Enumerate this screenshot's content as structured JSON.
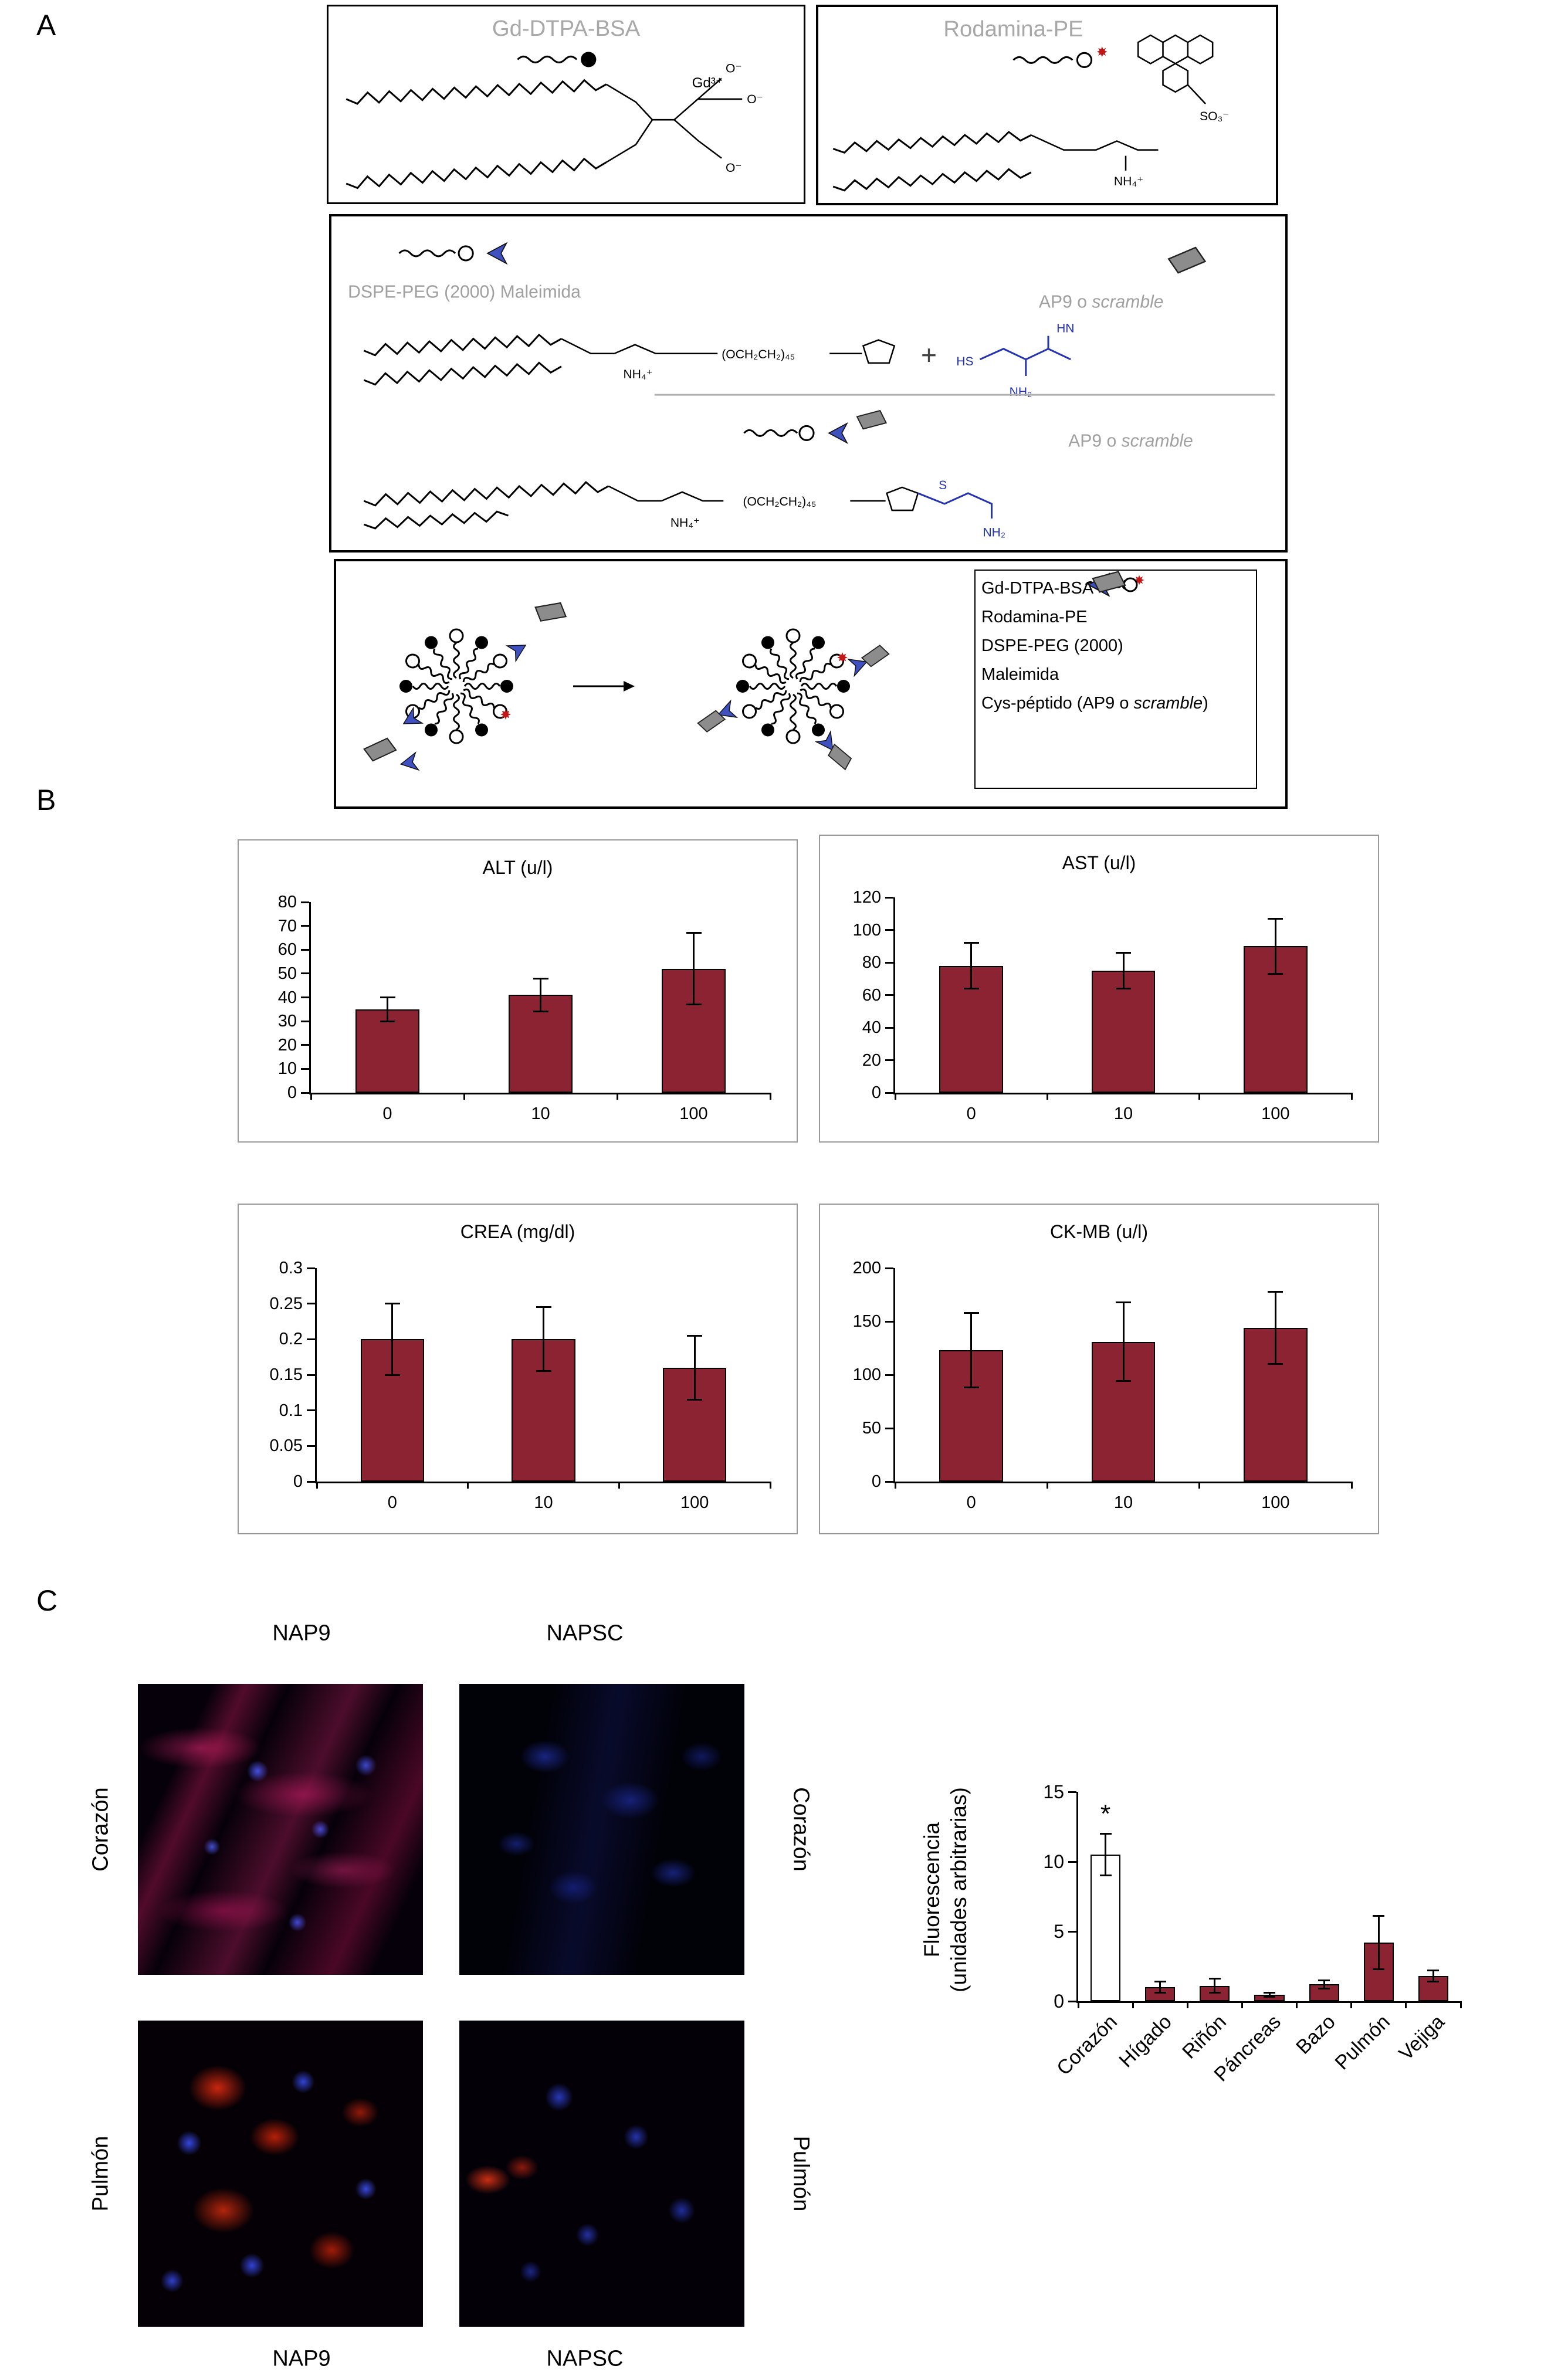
{
  "panel_a": {
    "label": "A",
    "box1_title": "Gd-DTPA-BSA",
    "box2_title": "Rodamina-PE",
    "dspe_label": "DSPE-PEG (2000) Maleimida",
    "ap9_prefix": "AP9 o ",
    "ap9_italic": "scramble",
    "plus": "+",
    "chem": {
      "gd": "Gd³⁺",
      "o_minus": "O⁻",
      "nh4": "NH₄⁺",
      "so3": "SO₃⁻",
      "hs": "HS",
      "hn": "HN",
      "nh2": "NH₂",
      "s": "S",
      "peg": "(OCH₂CH₂)₄₅"
    },
    "legend": {
      "gd": "Gd-DTPA-BSA",
      "rodamina": "Rodamina-PE",
      "dspe": "DSPE-PEG (2000)",
      "maleimida": "Maleimida",
      "cys_prefix": "Cys-péptido (AP9 o ",
      "cys_italic": "scramble",
      "cys_suffix": ")"
    }
  },
  "panel_b": {
    "label": "B"
  },
  "panel_c": {
    "label": "C",
    "nap9": "NAP9",
    "napsc": "NAPSC",
    "corazon": "Corazón",
    "pulmon": "Pulmón"
  },
  "chart_data": [
    {
      "id": "alt",
      "type": "bar",
      "title": "ALT (u/l)",
      "categories": [
        "0",
        "10",
        "100"
      ],
      "values": [
        35,
        41,
        52
      ],
      "errors": [
        5,
        7,
        15
      ],
      "ylim": [
        0,
        80
      ],
      "yticks": [
        0,
        10,
        20,
        30,
        40,
        50,
        60,
        70,
        80
      ],
      "bar_color": "#8b2332",
      "bar_frac": 0.42,
      "cap": 26,
      "tick_font": 29,
      "xlabel": "",
      "ylabel": "",
      "grid": false,
      "legend": "none"
    },
    {
      "id": "ast",
      "type": "bar",
      "title": "AST (u/l)",
      "categories": [
        "0",
        "10",
        "100"
      ],
      "values": [
        78,
        75,
        90
      ],
      "errors": [
        14,
        11,
        17
      ],
      "ylim": [
        0,
        120
      ],
      "yticks": [
        0,
        20,
        40,
        60,
        80,
        100,
        120
      ],
      "bar_color": "#8b2332",
      "bar_frac": 0.42,
      "cap": 26,
      "tick_font": 29,
      "xlabel": "",
      "ylabel": "",
      "grid": false,
      "legend": "none"
    },
    {
      "id": "crea",
      "type": "bar",
      "title": "CREA (mg/dl)",
      "categories": [
        "0",
        "10",
        "100"
      ],
      "values": [
        0.2,
        0.2,
        0.16
      ],
      "errors": [
        0.05,
        0.045,
        0.045
      ],
      "ylim": [
        0,
        0.3
      ],
      "yticks": [
        0,
        0.05,
        0.1,
        0.15,
        0.2,
        0.25,
        0.3
      ],
      "bar_color": "#8b2332",
      "bar_frac": 0.42,
      "cap": 26,
      "tick_font": 29,
      "xlabel": "",
      "ylabel": "",
      "grid": false,
      "legend": "none"
    },
    {
      "id": "ckmb",
      "type": "bar",
      "title": "CK-MB (u/l)",
      "categories": [
        "0",
        "10",
        "100"
      ],
      "values": [
        123,
        131,
        144
      ],
      "errors": [
        35,
        37,
        34
      ],
      "ylim": [
        0,
        200
      ],
      "yticks": [
        0,
        50,
        100,
        150,
        200
      ],
      "bar_color": "#8b2332",
      "bar_frac": 0.42,
      "cap": 26,
      "tick_font": 29,
      "xlabel": "",
      "ylabel": "",
      "grid": false,
      "legend": "none"
    },
    {
      "id": "fluor",
      "type": "bar",
      "title": "",
      "categories": [
        "Corazón",
        "Hígado",
        "Riñón",
        "Páncreas",
        "Bazo",
        "Pulmón",
        "Vejiga"
      ],
      "values": [
        10.5,
        1.0,
        1.1,
        0.45,
        1.2,
        4.2,
        1.8
      ],
      "errors": [
        1.5,
        0.4,
        0.5,
        0.15,
        0.3,
        1.9,
        0.4
      ],
      "ylim": [
        0,
        15
      ],
      "yticks": [
        0,
        5,
        10,
        15
      ],
      "bar_colors": [
        "#ffffff",
        "#8b2332",
        "#8b2332",
        "#8b2332",
        "#8b2332",
        "#8b2332",
        "#8b2332"
      ],
      "bar_frac": 0.55,
      "cap": 20,
      "tick_font": 32,
      "rotate_x": true,
      "annotations": [
        {
          "index": 0,
          "text": "*"
        }
      ],
      "ylabel_line1": "Fluorescencia",
      "ylabel_line2": "(unidades arbitrarias)",
      "xlabel": "",
      "grid": false,
      "legend": "none"
    }
  ]
}
